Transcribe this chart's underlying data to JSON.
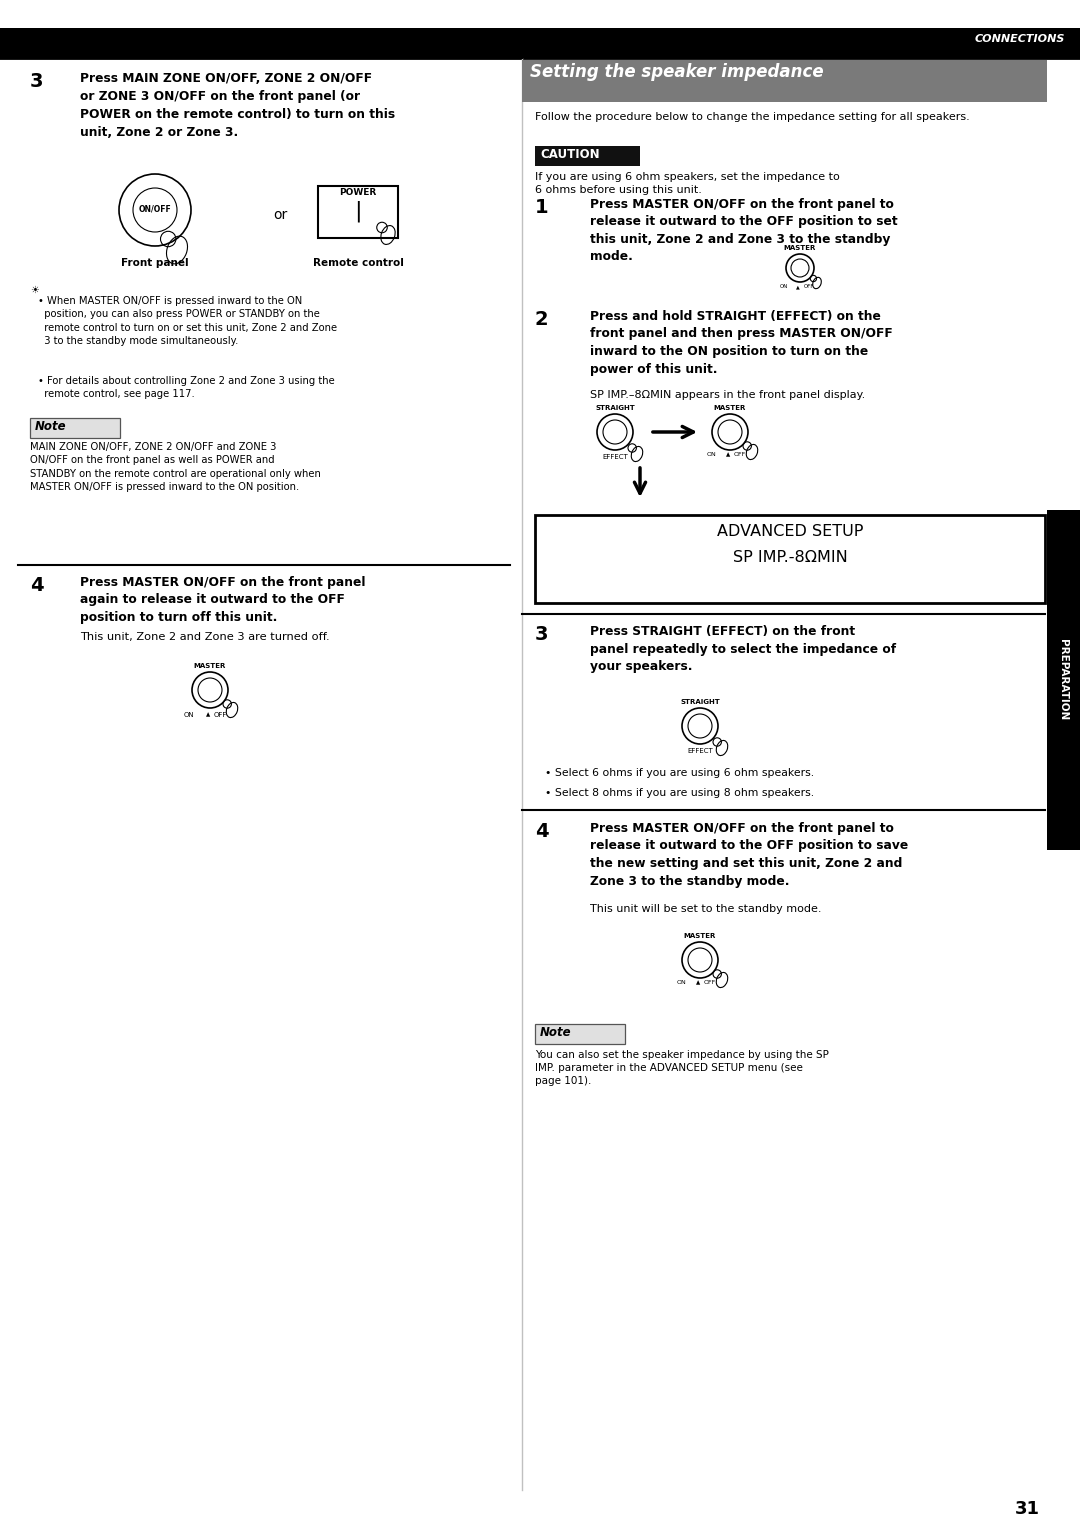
{
  "page_number": "31",
  "header_text": "CONNECTIONS",
  "bg_color": "#ffffff",
  "title_section": "Setting the speaker impedance",
  "title_bg": "#7a7a7a",
  "title_color": "#ffffff",
  "right_sidebar_text": "PREPARATION",
  "step3_number": "3",
  "step3_bold_lines": [
    "Press MAIN ZONE ON/OFF, ZONE 2 ON/OFF",
    "or ZONE 3 ON/OFF on the front panel (or",
    "POWER on the remote control) to turn on this",
    "unit, Zone 2 or Zone 3."
  ],
  "step3_label_front": "Front panel",
  "step3_label_remote": "Remote control",
  "tip_bullet1_lines": [
    "When MASTER ON/OFF is pressed inward to the ON",
    "position, you can also press POWER or STANDBY on the",
    "remote control to turn on or set this unit, Zone 2 and Zone",
    "3 to the standby mode simultaneously."
  ],
  "tip_bullet2_lines": [
    "For details about controlling Zone 2 and Zone 3 using the",
    "remote control, see page 117."
  ],
  "note1_title": "Note",
  "note1_lines": [
    "MAIN ZONE ON/OFF, ZONE 2 ON/OFF and ZONE 3",
    "ON/OFF on the front panel as well as POWER and",
    "STANDBY on the remote control are operational only when",
    "MASTER ON/OFF is pressed inward to the ON position."
  ],
  "step4_number": "4",
  "step4_bold_lines": [
    "Press MASTER ON/OFF on the front panel",
    "again to release it outward to the OFF",
    "position to turn off this unit."
  ],
  "step4_normal": "This unit, Zone 2 and Zone 3 are turned off.",
  "right_follow": "Follow the procedure below to change the impedance setting for all speakers.",
  "caution_title": "CAUTION",
  "caution_lines": [
    "If you are using 6 ohm speakers, set the impedance to",
    "6 ohms before using this unit."
  ],
  "r1_number": "1",
  "r1_bold_lines": [
    "Press MASTER ON/OFF on the front panel to",
    "release it outward to the OFF position to set",
    "this unit, Zone 2 and Zone 3 to the standby",
    "mode."
  ],
  "r2_number": "2",
  "r2_bold_lines": [
    "Press and hold STRAIGHT (EFFECT) on the",
    "front panel and then press MASTER ON/OFF",
    "inward to the ON position to turn on the",
    "power of this unit."
  ],
  "r2_normal": "SP IMP.–8ΩMIN appears in the front panel display.",
  "display_line1": "ADVANCED SETUP",
  "display_line2": "SP IMP.-8ΩMIN",
  "r3_number": "3",
  "r3_bold_lines": [
    "Press STRAIGHT (EFFECT) on the front",
    "panel repeatedly to select the impedance of",
    "your speakers."
  ],
  "r3_bullet1": "Select 6 ohms if you are using 6 ohm speakers.",
  "r3_bullet2": "Select 8 ohms if you are using 8 ohm speakers.",
  "r4_number": "4",
  "r4_bold_lines": [
    "Press MASTER ON/OFF on the front panel to",
    "release it outward to the OFF position to save",
    "the new setting and set this unit, Zone 2 and",
    "Zone 3 to the standby mode."
  ],
  "r4_normal": "This unit will be set to the standby mode.",
  "note2_title": "Note",
  "note2_lines": [
    "You can also set the speaker impedance by using the SP",
    "IMP. parameter in the ADVANCED SETUP menu (see",
    "page 101)."
  ]
}
